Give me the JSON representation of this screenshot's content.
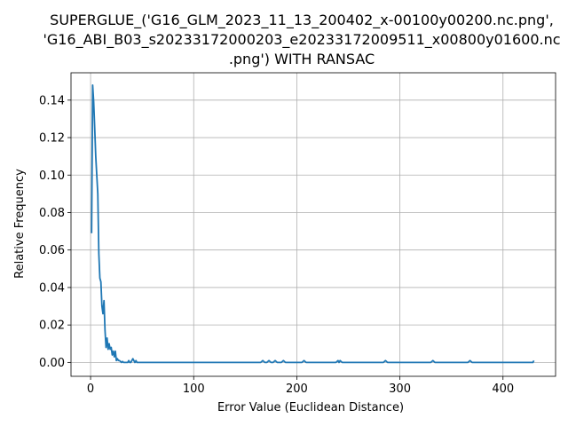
{
  "chart_data": {
    "type": "line",
    "title_lines": [
      "SUPERGLUE_('G16_GLM_2023_11_13_200402_x-00100y00200.nc.png',",
      "'G16_ABI_B03_s20233172000203_e20233172009511_x00800y01600.nc",
      ".png') WITH RANSAC"
    ],
    "xlabel": "Error Value (Euclidean Distance)",
    "ylabel": "Relative Frequency",
    "xlim": [
      -19,
      451
    ],
    "ylim": [
      -0.0074,
      0.1546
    ],
    "xticks": [
      0,
      100,
      200,
      300,
      400
    ],
    "xtick_labels": [
      "0",
      "100",
      "200",
      "300",
      "400"
    ],
    "yticks": [
      0.0,
      0.02,
      0.04,
      0.06,
      0.08,
      0.1,
      0.12,
      0.14
    ],
    "ytick_labels": [
      "0.00",
      "0.02",
      "0.04",
      "0.06",
      "0.08",
      "0.10",
      "0.12",
      "0.14"
    ],
    "grid": true,
    "line_color": "#1f77b4",
    "series": [
      {
        "x": [
          1,
          2,
          3,
          4,
          5,
          6,
          7,
          8,
          9,
          10,
          11,
          12,
          13,
          14,
          15,
          16,
          17,
          18,
          19,
          20,
          21,
          22,
          23,
          24,
          25,
          26,
          27,
          28,
          29,
          30,
          31,
          32,
          33,
          34,
          35,
          36,
          37,
          38,
          39,
          40,
          41,
          42,
          43,
          44,
          45,
          50,
          100,
          150,
          165,
          167,
          169,
          171,
          173,
          175,
          177,
          179,
          181,
          185,
          187,
          189,
          205,
          207,
          209,
          211,
          238,
          240,
          241,
          242,
          244,
          284,
          286,
          288,
          330,
          332,
          334,
          366,
          368,
          370,
          429,
          430
        ],
        "y": [
          0.069,
          0.148,
          0.139,
          0.125,
          0.11,
          0.1,
          0.09,
          0.058,
          0.045,
          0.043,
          0.03,
          0.026,
          0.033,
          0.017,
          0.008,
          0.013,
          0.007,
          0.01,
          0.007,
          0.008,
          0.004,
          0.006,
          0.003,
          0.006,
          0.001,
          0.002,
          0.001,
          0.001,
          0.0005,
          0.0,
          0.0005,
          0.0,
          0.0,
          0.0,
          0.0,
          0.0,
          0.001,
          0.0,
          0.0,
          0.001,
          0.002,
          0.001,
          0.0,
          0.001,
          0.0,
          0.0,
          0.0,
          0.0,
          0.0,
          0.001,
          0.0,
          0.0,
          0.001,
          0.0,
          0.0,
          0.001,
          0.0,
          0.0,
          0.001,
          0.0,
          0.0,
          0.001,
          0.0,
          0.0,
          0.0,
          0.001,
          0.0,
          0.001,
          0.0,
          0.0,
          0.001,
          0.0,
          0.0,
          0.001,
          0.0,
          0.0,
          0.001,
          0.0,
          0.0,
          0.001
        ]
      }
    ]
  }
}
